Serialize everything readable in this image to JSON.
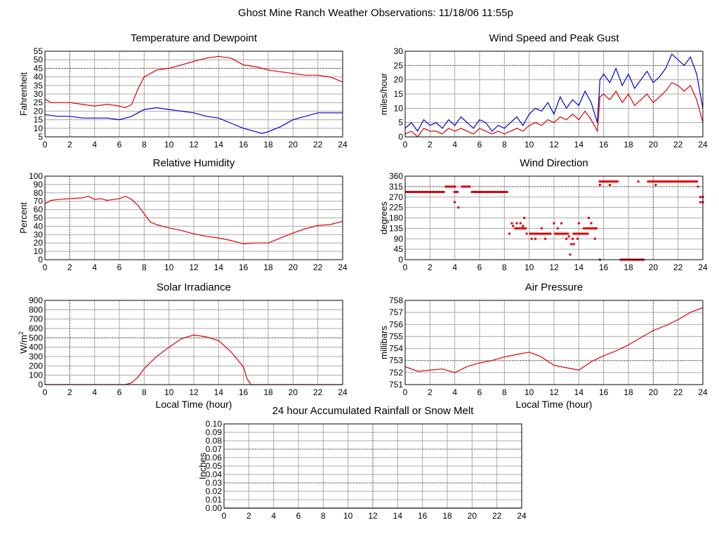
{
  "page_title": "Ghost Mine Ranch Weather Observations: 11/18/06 11:55p",
  "colors": {
    "red": "#dd0000",
    "blue": "#0000cc",
    "grid": "#a8a8a8"
  },
  "chart_data": [
    {
      "id": "temp",
      "type": "line",
      "title": "Temperature and Dewpoint",
      "ylabel": "Fahrenheit",
      "xlabel": "",
      "xlim": [
        0,
        24
      ],
      "ylim": [
        5,
        55
      ],
      "xticks": [
        0,
        2,
        4,
        6,
        8,
        10,
        12,
        14,
        16,
        18,
        20,
        22,
        24
      ],
      "yticks": [
        5,
        10,
        15,
        20,
        25,
        30,
        35,
        40,
        45,
        50,
        55
      ],
      "grid": true,
      "dotted_lines": {
        "x": [
          2
        ],
        "y": [
          45
        ]
      },
      "series": [
        {
          "color": "red",
          "x": [
            0,
            0.5,
            1,
            2,
            3,
            4,
            5,
            6,
            6.5,
            7,
            7.5,
            8,
            9,
            10,
            11,
            12,
            13,
            14,
            15,
            16,
            17,
            18,
            19,
            20,
            21,
            22,
            23,
            24
          ],
          "y": [
            27,
            25,
            25,
            25,
            24,
            23,
            24,
            23,
            22,
            24,
            33,
            40,
            44,
            45,
            47,
            49,
            51,
            52,
            51,
            47,
            46,
            44,
            43,
            42,
            41,
            41,
            40,
            37
          ]
        },
        {
          "color": "blue",
          "x": [
            0,
            1,
            2,
            3,
            4,
            5,
            6,
            6.5,
            7,
            7.5,
            8,
            9,
            10,
            11,
            12,
            13,
            14,
            15,
            16,
            17,
            17.5,
            18,
            19,
            20,
            21,
            22,
            23,
            24
          ],
          "y": [
            18,
            17,
            17,
            16,
            16,
            16,
            15,
            16,
            17,
            19,
            21,
            22,
            21,
            20,
            19,
            17,
            16,
            13,
            10,
            8,
            7,
            8,
            11,
            15,
            17,
            19,
            19,
            19
          ]
        }
      ]
    },
    {
      "id": "wind",
      "type": "line",
      "title": "Wind Speed and Peak Gust",
      "ylabel": "miles/hour",
      "xlabel": "",
      "xlim": [
        0,
        24
      ],
      "ylim": [
        0,
        30
      ],
      "xticks": [
        0,
        2,
        4,
        6,
        8,
        10,
        12,
        14,
        16,
        18,
        20,
        22,
        24
      ],
      "yticks": [
        0,
        5,
        10,
        15,
        20,
        25,
        30
      ],
      "grid": true,
      "dotted_lines": {
        "x": [
          20
        ],
        "y": [
          25
        ]
      },
      "series": [
        {
          "color": "blue",
          "x": [
            0,
            0.5,
            1,
            1.5,
            2,
            2.5,
            3,
            3.5,
            4,
            4.5,
            5,
            5.5,
            6,
            6.5,
            7,
            7.5,
            8,
            8.5,
            9,
            9.5,
            10,
            10.5,
            11,
            11.5,
            12,
            12.5,
            13,
            13.5,
            14,
            14.5,
            15,
            15.5,
            15.7,
            16,
            16.5,
            17,
            17.5,
            18,
            18.5,
            19,
            19.5,
            20,
            20.5,
            21,
            21.5,
            22,
            22.5,
            23,
            23.5,
            24
          ],
          "y": [
            3,
            5,
            2,
            6,
            4,
            5,
            3,
            6,
            4,
            7,
            5,
            3,
            6,
            5,
            2,
            4,
            3,
            5,
            7,
            4,
            8,
            10,
            9,
            12,
            8,
            14,
            10,
            13,
            11,
            16,
            12,
            5,
            20,
            22,
            19,
            24,
            18,
            22,
            17,
            20,
            23,
            19,
            21,
            24,
            29,
            27,
            25,
            28,
            22,
            10
          ]
        },
        {
          "color": "red",
          "x": [
            0,
            0.5,
            1,
            1.5,
            2,
            2.5,
            3,
            3.5,
            4,
            4.5,
            5,
            5.5,
            6,
            6.5,
            7,
            7.5,
            8,
            8.5,
            9,
            9.5,
            10,
            10.5,
            11,
            11.5,
            12,
            12.5,
            13,
            13.5,
            14,
            14.5,
            15,
            15.5,
            15.7,
            16,
            16.5,
            17,
            17.5,
            18,
            18.5,
            19,
            19.5,
            20,
            20.5,
            21,
            21.5,
            22,
            22.5,
            23,
            23.5,
            24
          ],
          "y": [
            1,
            2,
            0,
            3,
            2,
            2,
            1,
            3,
            2,
            3,
            2,
            1,
            3,
            2,
            1,
            2,
            1,
            2,
            3,
            2,
            4,
            5,
            4,
            6,
            5,
            7,
            6,
            8,
            6,
            9,
            6,
            2,
            14,
            15,
            13,
            16,
            12,
            15,
            11,
            13,
            15,
            12,
            14,
            16,
            19,
            18,
            16,
            18,
            13,
            5
          ]
        }
      ]
    },
    {
      "id": "rh",
      "type": "line",
      "title": "Relative Humidity",
      "ylabel": "Percent",
      "xlabel": "",
      "xlim": [
        0,
        24
      ],
      "ylim": [
        0,
        100
      ],
      "xticks": [
        0,
        2,
        4,
        6,
        8,
        10,
        12,
        14,
        16,
        18,
        20,
        22,
        24
      ],
      "yticks": [
        0,
        10,
        20,
        30,
        40,
        50,
        60,
        70,
        80,
        90,
        100
      ],
      "grid": true,
      "dotted_lines": {
        "x": [
          2
        ],
        "y": []
      },
      "series": [
        {
          "color": "red",
          "x": [
            0,
            0.5,
            1,
            2,
            3,
            3.5,
            4,
            4.5,
            5,
            6,
            6.5,
            7,
            7.5,
            8,
            8.5,
            9,
            10,
            11,
            12,
            13,
            14,
            15,
            16,
            17,
            18,
            19,
            20,
            21,
            22,
            23,
            24
          ],
          "y": [
            67,
            71,
            72,
            73,
            74,
            76,
            72,
            73,
            71,
            73,
            76,
            72,
            65,
            55,
            45,
            42,
            38,
            35,
            31,
            28,
            26,
            23,
            19,
            20,
            20,
            26,
            32,
            37,
            41,
            42,
            46
          ]
        }
      ]
    },
    {
      "id": "wdir",
      "type": "scatter",
      "title": "Wind Direction",
      "ylabel": "degrees",
      "xlabel": "",
      "xlim": [
        0,
        24
      ],
      "ylim": [
        0,
        360
      ],
      "xticks": [
        0,
        2,
        4,
        6,
        8,
        10,
        12,
        14,
        16,
        18,
        20,
        22,
        24
      ],
      "yticks": [
        0,
        45,
        90,
        135,
        180,
        225,
        270,
        315,
        360
      ],
      "grid": true,
      "dotted_lines": {
        "x": [
          20
        ],
        "y": [
          315
        ]
      },
      "segments": [
        {
          "x1": 0,
          "x2": 3.2,
          "y": 292
        },
        {
          "x1": 3.2,
          "x2": 4.1,
          "y": 315
        },
        {
          "x1": 3.9,
          "x2": 4.3,
          "y": 292
        },
        {
          "x1": 4.5,
          "x2": 5.3,
          "y": 315
        },
        {
          "x1": 5.3,
          "x2": 8.3,
          "y": 292
        },
        {
          "x1": 8.8,
          "x2": 9.8,
          "y": 135
        },
        {
          "x1": 10,
          "x2": 11.8,
          "y": 112
        },
        {
          "x1": 12,
          "x2": 13.2,
          "y": 112
        },
        {
          "x1": 13.5,
          "x2": 14.8,
          "y": 112
        },
        {
          "x1": 14.5,
          "x2": 15.5,
          "y": 135
        },
        {
          "x1": 15.6,
          "x2": 17.2,
          "y": 337
        },
        {
          "x1": 17.3,
          "x2": 19.3,
          "y": 0
        },
        {
          "x1": 19.5,
          "x2": 20.5,
          "y": 337
        },
        {
          "x1": 20.5,
          "x2": 23.6,
          "y": 337
        }
      ],
      "points": [
        [
          4,
          248
        ],
        [
          4.3,
          225
        ],
        [
          8.4,
          112
        ],
        [
          8.6,
          157
        ],
        [
          8.7,
          145
        ],
        [
          9,
          157
        ],
        [
          9.3,
          157
        ],
        [
          9.5,
          145
        ],
        [
          9.6,
          180
        ],
        [
          9.8,
          112
        ],
        [
          10.2,
          90
        ],
        [
          10.5,
          90
        ],
        [
          11,
          135
        ],
        [
          11.3,
          90
        ],
        [
          12,
          157
        ],
        [
          12.3,
          135
        ],
        [
          12.6,
          157
        ],
        [
          13,
          90
        ],
        [
          13.2,
          100
        ],
        [
          13.4,
          67
        ],
        [
          13.5,
          90
        ],
        [
          13.3,
          22
        ],
        [
          13.6,
          67
        ],
        [
          13.9,
          90
        ],
        [
          14,
          157
        ],
        [
          14.4,
          135
        ],
        [
          14.6,
          112
        ],
        [
          14.8,
          180
        ],
        [
          15,
          157
        ],
        [
          15.3,
          90
        ],
        [
          15.7,
          0
        ],
        [
          15.7,
          322
        ],
        [
          16.2,
          337
        ],
        [
          16.5,
          322
        ],
        [
          18.8,
          337
        ],
        [
          20.2,
          322
        ],
        [
          23.6,
          315
        ],
        [
          23.8,
          270
        ],
        [
          23.8,
          248
        ],
        [
          24,
          270
        ],
        [
          24,
          248
        ]
      ]
    },
    {
      "id": "solar",
      "type": "line",
      "title": "Solar Irradiance",
      "ylabel": "W/m",
      "ylabel_sup": "2",
      "xlabel": "Local Time (hour)",
      "xlim": [
        0,
        24
      ],
      "ylim": [
        0,
        900
      ],
      "xticks": [
        0,
        2,
        4,
        6,
        8,
        10,
        12,
        14,
        16,
        18,
        20,
        22,
        24
      ],
      "yticks": [
        0,
        100,
        200,
        300,
        400,
        500,
        600,
        700,
        800,
        900
      ],
      "grid": true,
      "dotted_lines": {
        "x": [
          2
        ],
        "y": [
          500
        ]
      },
      "series": [
        {
          "color": "red",
          "x": [
            0,
            6.5,
            7,
            7.5,
            8,
            9,
            10,
            11,
            12,
            13,
            14,
            15,
            16,
            16.3,
            16.6,
            24
          ],
          "y": [
            0,
            0,
            20,
            80,
            170,
            300,
            400,
            490,
            530,
            510,
            470,
            350,
            190,
            60,
            0,
            0
          ]
        }
      ]
    },
    {
      "id": "pressure",
      "type": "line",
      "title": "Air Pressure",
      "ylabel": "millibars",
      "xlabel": "Local Time (hour)",
      "xlim": [
        0,
        24
      ],
      "ylim": [
        751,
        758
      ],
      "xticks": [
        0,
        2,
        4,
        6,
        8,
        10,
        12,
        14,
        16,
        18,
        20,
        22,
        24
      ],
      "yticks": [
        751,
        752,
        753,
        754,
        755,
        756,
        757,
        758
      ],
      "grid": true,
      "dotted_lines": {
        "x": [
          20
        ],
        "y": [
          753
        ]
      },
      "series": [
        {
          "color": "red",
          "x": [
            0,
            1,
            2,
            3,
            4,
            5,
            6,
            7,
            8,
            9,
            10,
            11,
            12,
            13,
            14,
            15,
            16,
            17,
            18,
            19,
            20,
            21,
            22,
            23,
            24
          ],
          "y": [
            752.5,
            752.1,
            752.2,
            752.3,
            752.0,
            752.5,
            752.8,
            753.0,
            753.3,
            753.5,
            753.7,
            753.3,
            752.6,
            752.4,
            752.2,
            752.9,
            753.4,
            753.8,
            754.3,
            754.9,
            755.5,
            755.9,
            756.4,
            757.0,
            757.4
          ]
        }
      ]
    },
    {
      "id": "rain",
      "type": "line",
      "title": "24 hour Accumulated Rainfall or Snow Melt",
      "ylabel": "Inches",
      "xlabel": "",
      "xlim": [
        0,
        24
      ],
      "ylim": [
        0,
        0.1
      ],
      "xticks": [
        0,
        2,
        4,
        6,
        8,
        10,
        12,
        14,
        16,
        18,
        20,
        22,
        24
      ],
      "yticks": [
        "0.00",
        "0.01",
        "0.02",
        "0.03",
        "0.04",
        "0.05",
        "0.06",
        "0.07",
        "0.08",
        "0.09",
        "0.10"
      ],
      "grid": true,
      "dotted_lines": {
        "x": [
          12
        ],
        "y": [
          0.07,
          0.03
        ]
      },
      "series": [
        {
          "color": "red",
          "x": [
            0,
            24
          ],
          "y": [
            0,
            0
          ]
        }
      ]
    }
  ]
}
